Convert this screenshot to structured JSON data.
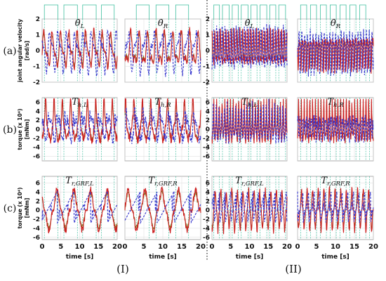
{
  "row_labels": [
    "(a)",
    "(b)",
    "(c)"
  ],
  "group_labels": [
    "(I)",
    "(II)"
  ],
  "xlabel": "time [s]",
  "row_ylabels": [
    {
      "line1": "joint angular velocity",
      "line2": "[rad/s]"
    },
    {
      "line1": "torque (x 10⁴)",
      "line2": "[mNm]"
    },
    {
      "line1": "torque (x 10⁴)",
      "line2": "[mNm]"
    }
  ],
  "colors": {
    "red": "#cc2020",
    "blue": "#3333cc",
    "olive": "#7a6a14",
    "band": "#f4b8c8",
    "phase": "#3fbf9f"
  },
  "chart_data": {
    "type": "line",
    "xlim": [
      0,
      20
    ],
    "xticks": [
      0,
      5,
      10,
      15,
      20
    ],
    "xtick_labels": [
      "0",
      "5",
      "10",
      "15",
      "20"
    ],
    "grid": true,
    "rows": [
      {
        "ylim": [
          -2,
          2
        ],
        "yticks": [
          -2,
          -1,
          0,
          1,
          2
        ],
        "ytick_labels": [
          "-2",
          "-1",
          "0",
          "1",
          "2"
        ]
      },
      {
        "ylim": [
          -7,
          7
        ],
        "yticks": [
          -6,
          -4,
          -2,
          0,
          2,
          4,
          6
        ],
        "ytick_labels": [
          "-6",
          "-4",
          "-2",
          "0",
          "2",
          "4",
          "6"
        ]
      },
      {
        "ylim": [
          -6.5,
          7.5
        ],
        "yticks": [
          -6,
          -4,
          -2,
          0,
          2,
          4,
          6
        ],
        "ytick_labels": [
          "-6",
          "-4",
          "-2",
          "0",
          "2",
          "4",
          "6"
        ]
      }
    ],
    "panels": [
      {
        "row": 0,
        "col": 0,
        "title_main": "θ̇",
        "title_sub": "L",
        "phase_times": [
          0.6,
          4.2,
          5.8,
          9.4,
          10.8,
          14.4,
          15.8,
          19.2
        ]
      },
      {
        "row": 0,
        "col": 1,
        "title_main": "θ̇",
        "title_sub": "R",
        "phase_times": [
          3.0,
          6.4,
          8.2,
          11.6,
          13.4,
          16.8
        ]
      },
      {
        "row": 0,
        "col": 2,
        "title_main": "θ̇",
        "title_sub": "L",
        "phase_times": [
          0.5,
          2.0,
          2.8,
          4.6,
          5.4,
          7.0,
          7.8,
          9.6,
          10.4,
          12.0,
          12.8,
          14.6,
          15.4,
          17.0,
          17.8,
          19.6
        ]
      },
      {
        "row": 0,
        "col": 3,
        "title_main": "θ̇",
        "title_sub": "R",
        "phase_times": [
          0.8,
          2.4,
          3.4,
          5.0,
          6.0,
          7.6,
          8.6,
          10.2,
          11.2,
          12.8,
          13.8,
          15.4,
          16.4,
          18.0,
          19.0
        ]
      },
      {
        "row": 1,
        "col": 0,
        "title_main": "T",
        "title_sub": "h,L",
        "phase_times": [
          0.6,
          4.2,
          5.8,
          9.4,
          10.8,
          14.4,
          15.8,
          19.2
        ]
      },
      {
        "row": 1,
        "col": 1,
        "title_main": "T",
        "title_sub": "h,R",
        "phase_times": [
          3.0,
          6.4,
          8.2,
          11.6,
          13.4,
          16.8
        ]
      },
      {
        "row": 1,
        "col": 2,
        "title_main": "T",
        "title_sub": "h,L",
        "phase_times": [
          0.5,
          2.0,
          2.8,
          4.6,
          5.4,
          7.0,
          7.8,
          9.6,
          10.4,
          12.0,
          12.8,
          14.6,
          15.4,
          17.0,
          17.8,
          19.6
        ]
      },
      {
        "row": 1,
        "col": 3,
        "title_main": "T",
        "title_sub": "h,R",
        "phase_times": [
          0.8,
          2.4,
          3.4,
          5.0,
          6.0,
          7.6,
          8.6,
          10.2,
          11.2,
          12.8,
          13.8,
          15.4,
          16.4,
          18.0,
          19.0
        ]
      },
      {
        "row": 2,
        "col": 0,
        "title_main": "T",
        "title_sub": "r,GRF,L",
        "phase_times": [
          0.6,
          4.2,
          5.8,
          9.4,
          10.8,
          14.4,
          15.8,
          19.2
        ]
      },
      {
        "row": 2,
        "col": 1,
        "title_main": "T",
        "title_sub": "r,GRF,R",
        "phase_times": [
          3.0,
          6.4,
          8.2,
          11.6,
          13.4,
          16.8
        ]
      },
      {
        "row": 2,
        "col": 2,
        "title_main": "T",
        "title_sub": "r,GRF,L",
        "phase_times": [
          0.5,
          2.0,
          2.8,
          4.6,
          5.4,
          7.0,
          7.8,
          9.6,
          10.4,
          12.0,
          12.8,
          14.6,
          15.4,
          17.0,
          17.8,
          19.6
        ]
      },
      {
        "row": 2,
        "col": 3,
        "title_main": "T",
        "title_sub": "r,GRF,R",
        "phase_times": [
          0.8,
          2.4,
          3.4,
          5.0,
          6.0,
          7.6,
          8.6,
          10.2,
          11.2,
          12.8,
          13.8,
          15.4,
          16.4,
          18.0,
          19.0
        ]
      }
    ],
    "series_styles": [
      {
        "color": "#cc2020",
        "style": "solid"
      },
      {
        "color": "#3333cc",
        "style": "dashed"
      },
      {
        "color": "#7a6a14",
        "style": "solid"
      }
    ]
  }
}
